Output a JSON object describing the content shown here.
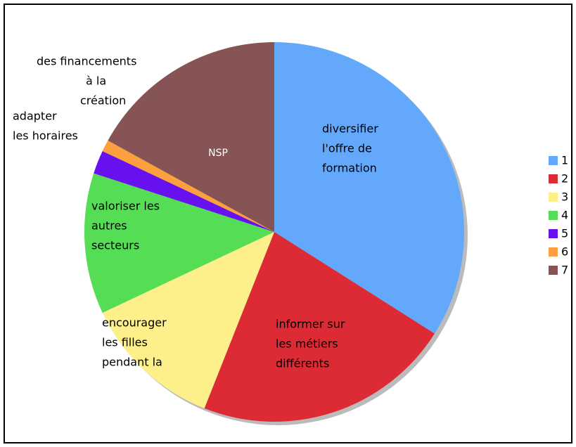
{
  "chart_data": {
    "type": "pie",
    "categories": [
      "1",
      "2",
      "3",
      "4",
      "5",
      "6",
      "7"
    ],
    "values": [
      34,
      22,
      12,
      12,
      2,
      1,
      17
    ],
    "labels": [
      [
        "diversifier",
        "l'offre de",
        "formation"
      ],
      [
        "informer sur",
        "les métiers",
        "différents"
      ],
      [
        "encourager",
        "les filles",
        "pendant la"
      ],
      [
        "valoriser les",
        "autres",
        "secteurs"
      ],
      [
        "adapter",
        "les horaires"
      ],
      [
        "des financements",
        "à la",
        "création"
      ],
      [
        "NSP"
      ]
    ],
    "colors": [
      "#63a8fb",
      "#dc2b34",
      "#fdf08a",
      "#55dd55",
      "#6611ee",
      "#fb9f3f",
      "#865454"
    ],
    "legend": "right"
  }
}
